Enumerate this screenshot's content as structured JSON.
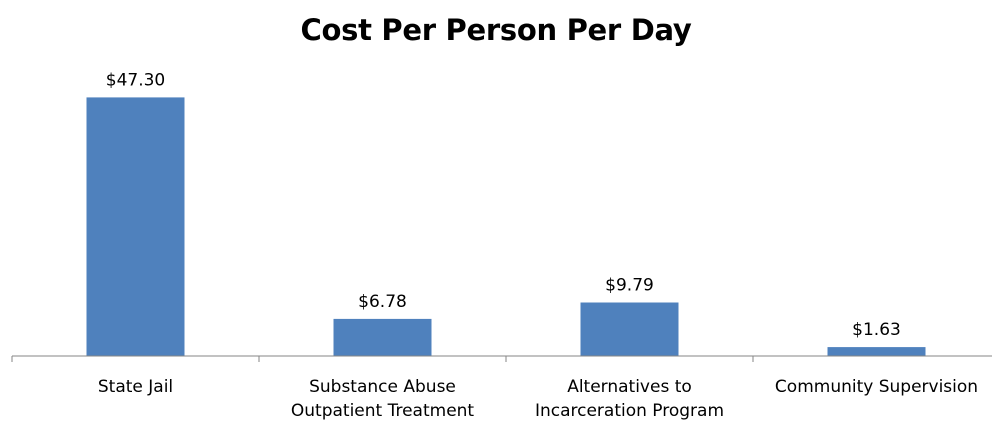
{
  "chart_data": {
    "type": "bar",
    "title": "Cost Per Person Per Day",
    "xlabel": "",
    "ylabel": "",
    "categories": [
      [
        "State Jail"
      ],
      [
        "Substance Abuse",
        "Outpatient Treatment"
      ],
      [
        "Alternatives to",
        "Incarceration Program"
      ],
      [
        "Community Supervision"
      ]
    ],
    "values": [
      47.3,
      6.78,
      9.79,
      1.63
    ],
    "data_labels": [
      "$47.30",
      "$6.78",
      "$9.79",
      "$1.63"
    ],
    "ylim": [
      0,
      50
    ],
    "grid": false,
    "legend": "none",
    "bar_color": "#4F81BD",
    "axis_color": "#868686"
  }
}
